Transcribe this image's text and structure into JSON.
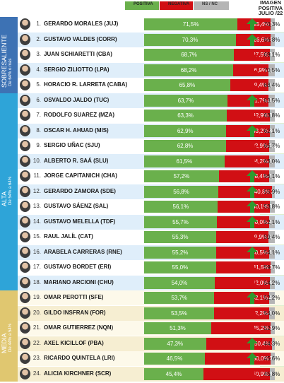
{
  "legend": {
    "items": [
      {
        "label": "POSITIVA",
        "color": "#6ab04c"
      },
      {
        "label": "NEGATIVA",
        "color": "#d10f14"
      },
      {
        "label": "NS / NC",
        "color": "#b5b5b5"
      }
    ],
    "image_title_lines": [
      "IMAGEN",
      "POSITIVA",
      "JULIO /22"
    ]
  },
  "groups": [
    {
      "label": "SOBRESALIENTE",
      "sublabel": "De 64% o más",
      "color": "#3d72b4",
      "first_row": 0,
      "last_row": 4
    },
    {
      "label": "ALTA",
      "sublabel": "De 54% a 64%",
      "color": "#2ea4d8",
      "first_row": 5,
      "last_row": 17
    },
    {
      "label": "MEDIA",
      "sublabel": "De 44% a 54%",
      "color": "#e0c770",
      "first_row": 18,
      "last_row": 23
    }
  ],
  "colors": {
    "positive": "#6ab04c",
    "negative": "#d10f14",
    "nsnc": "#b5b5b5",
    "arrow_up": "#2f9a2f",
    "arrow_down": "#d10f14",
    "row_odd": "#ffffff",
    "row_even": "#dfeefa",
    "row_media_odd": "#fdf9ea",
    "row_media_even": "#f6eed2",
    "image_column": "#dff0d0"
  },
  "chart_data": {
    "type": "bar",
    "stacked": true,
    "orientation": "horizontal",
    "categories": [
      "GERARDO MORALES (JUJ)",
      "GUSTAVO VALDES (CORR)",
      "JUAN SCHIARETTI (CBA)",
      "SERGIO ZILIOTTO (LPA)",
      "HORACIO R. LARRETA (CABA)",
      "OSVALDO JALDO (TUC)",
      "RODOLFO SUAREZ (MZA)",
      "OSCAR H. AHUAD (MIS)",
      "SERGIO UÑAC (SJU)",
      "ALBERTO R. SAÁ (SLU)",
      "JORGE CAPITANICH (CHA)",
      "GERARDO ZAMORA (SDE)",
      "GUSTAVO SÁENZ (SAL)",
      "GUSTAVO MELELLA (TDF)",
      "RAUL JALÍL (CAT)",
      "ARABELA CARRERAS (RNE)",
      "GUSTAVO BORDET (ERI)",
      "MARIANO ARCIONI (CHU)",
      "OMAR PEROTTI (SFE)",
      "GILDO INSFRAN (FOR)",
      "OMAR GUTIERREZ (NQN)",
      "AXEL KICILLOF (PBA)",
      "RICARDO QUINTELA (LRI)",
      "ALICIA KIRCHNER (SCR)"
    ],
    "ranks": [
      "1.",
      "2.",
      "3.",
      "4.",
      "5.",
      "6.",
      "7.",
      "8.",
      "9.",
      "10.",
      "11.",
      "12.",
      "13.",
      "14.",
      "15.",
      "16.",
      "17.",
      "18.",
      "19.",
      "20.",
      "21.",
      "22.",
      "23.",
      "24."
    ],
    "series": [
      {
        "name": "POSITIVA",
        "values": [
          71.5,
          70.3,
          68.7,
          68.2,
          65.8,
          63.7,
          63.3,
          62.9,
          62.8,
          61.5,
          57.2,
          56.8,
          56.1,
          55.7,
          55.3,
          55.2,
          55.0,
          54.0,
          53.7,
          53.5,
          51.3,
          47.3,
          46.5,
          45.4
        ],
        "labels": [
          "71,5%",
          "70,3%",
          "68,7%",
          "68,2%",
          "65,8%",
          "63,7%",
          "63,3%",
          "62,9%",
          "62,8%",
          "61,5%",
          "57,2%",
          "56,8%",
          "56,1%",
          "55,7%",
          "55,3%",
          "55,2%",
          "55,0%",
          "54,0%",
          "53,7%",
          "53,5%",
          "51,3%",
          "47,3%",
          "46,5%",
          "45,4%"
        ]
      },
      {
        "name": "NEGATIVA",
        "values": [
          25.4,
          26.6,
          27.5,
          26.9,
          29.4,
          31.7,
          32.9,
          33.2,
          32.9,
          34.2,
          38.4,
          40.8,
          40.1,
          40.0,
          39.9,
          40.5,
          41.5,
          42.0,
          42.1,
          42.2,
          45.2,
          50.4,
          50.0,
          50.9
        ],
        "labels": [
          "25,4%",
          "26,6%",
          "27,5%",
          "26,9%",
          "29,4%",
          "31,7%",
          "32,9%",
          "33,2%",
          "32,9%",
          "34,2%",
          "38,4%",
          "40,8%",
          "40,1%",
          "40,0%",
          "39,9%",
          "40,5%",
          "41,5%",
          "42,0%",
          "42,1%",
          "42,2%",
          "45,2%",
          "50,4%",
          "50,0%",
          "50,9%"
        ]
      },
      {
        "name": "NS / NC",
        "values": [
          3.1,
          3.1,
          3.8,
          4.9,
          4.8,
          4.6,
          3.8,
          3.9,
          4.3,
          4.3,
          4.4,
          2.4,
          3.8,
          4.3,
          4.8,
          4.3,
          3.5,
          4.0,
          4.2,
          4.3,
          3.5,
          2.3,
          3.5,
          3.7
        ],
        "labels": [
          "3,1",
          "3,1",
          "3,8",
          "4,9",
          "4,8",
          "4,6",
          "3,8",
          "3,9",
          "4,3",
          "4,3",
          "4,4",
          "2,4",
          "3,8",
          "4,3",
          "4,8",
          "4,3",
          "3,5",
          "4,0",
          "4,2",
          "4,3",
          "3,5",
          "2,3",
          "3,5",
          "3,7"
        ]
      }
    ],
    "image_positiva_julio22": [
      70.3,
      66.8,
      69.1,
      70.5,
      68.4,
      63.5,
      63.8,
      62.1,
      66.7,
      63.0,
      56.1,
      55.9,
      53.8,
      52.1,
      59.4,
      54.1,
      59.7,
      54.2,
      52.2,
      54.0,
      52.9,
      44.3,
      45.6,
      45.8
    ],
    "image_labels": [
      "70,3%",
      "66,8%",
      "69,1%",
      "70,5%",
      "68,4%",
      "63,5%",
      "63,8%",
      "62,1%",
      "66,7%",
      "63,0%",
      "56,1%",
      "55,9%",
      "53,8%",
      "52,1%",
      "59,4%",
      "54,1%",
      "59,7%",
      "54,2%",
      "52,2%",
      "54,0%",
      "52,9%",
      "44,3%",
      "45,6%",
      "45,8%"
    ],
    "trend": [
      "up",
      "up",
      "down",
      "down",
      "down",
      "up",
      "down",
      "up",
      "down",
      "down",
      "up",
      "up",
      "up",
      "up",
      "down",
      "up",
      "down",
      "down",
      "up",
      "down",
      "down",
      "up",
      "up",
      "down"
    ],
    "xlim": [
      0,
      100
    ]
  }
}
